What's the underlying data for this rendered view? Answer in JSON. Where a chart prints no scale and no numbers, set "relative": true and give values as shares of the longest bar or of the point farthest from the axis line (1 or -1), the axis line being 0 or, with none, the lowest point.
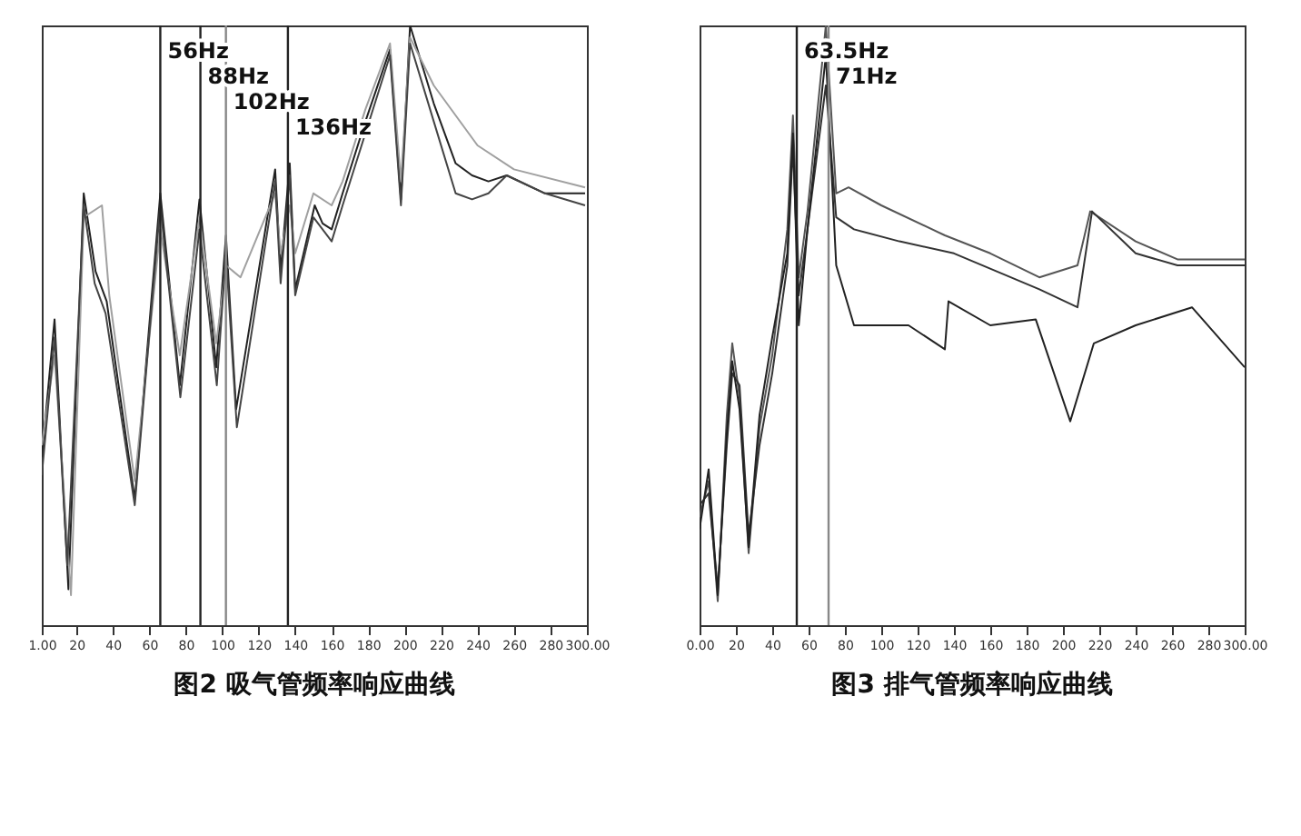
{
  "chart_data": [
    {
      "type": "line",
      "title": "图2  吸气管频率响应曲线",
      "relative": true,
      "xlim": [
        1,
        300
      ],
      "xticks": [
        {
          "value": 1,
          "label": "1.00"
        },
        20,
        40,
        60,
        80,
        100,
        120,
        140,
        160,
        180,
        200,
        220,
        240,
        260,
        280,
        {
          "value": 300,
          "label": "300.00"
        }
      ],
      "series": [
        {
          "color": "#222222",
          "x": [
            1,
            8,
            15.6,
            24,
            30.5,
            36.6,
            52,
            66,
            76.7,
            87.5,
            96.7,
            102,
            107.6,
            129,
            132,
            137,
            140,
            150.7,
            155,
            160,
            166,
            178.5,
            192,
            198,
            203,
            216,
            228,
            237,
            246,
            256,
            277,
            299
          ],
          "values": [
            0.28,
            0.51,
            0.06,
            0.72,
            0.59,
            0.54,
            0.21,
            0.72,
            0.4,
            0.71,
            0.43,
            0.65,
            0.36,
            0.76,
            0.59,
            0.77,
            0.56,
            0.7,
            0.67,
            0.66,
            0.72,
            0.84,
            0.96,
            0.71,
            1,
            0.87,
            0.77,
            0.75,
            0.74,
            0.75,
            0.72,
            0.72
          ]
        },
        {
          "color": "#a0a0a0",
          "x": [
            1,
            8,
            17,
            24,
            34,
            38,
            52,
            66,
            76.7,
            87.5,
            96.7,
            102,
            110,
            129,
            132,
            137,
            140,
            150,
            160,
            166,
            178.5,
            192,
            198,
            203,
            216,
            240,
            260,
            299
          ],
          "values": [
            0.3,
            0.45,
            0.05,
            0.68,
            0.7,
            0.55,
            0.24,
            0.66,
            0.45,
            0.68,
            0.47,
            0.6,
            0.58,
            0.72,
            0.62,
            0.7,
            0.62,
            0.72,
            0.7,
            0.74,
            0.86,
            0.97,
            0.74,
            0.98,
            0.9,
            0.8,
            0.76,
            0.73
          ]
        },
        {
          "color": "#444444",
          "x": [
            1,
            8,
            15,
            24,
            30,
            36,
            52,
            66,
            77,
            87.5,
            97,
            102,
            108,
            129,
            132,
            137,
            140,
            150,
            160,
            166,
            178.5,
            192,
            198,
            203,
            216,
            228,
            237,
            246,
            256,
            277,
            299
          ],
          "values": [
            0.25,
            0.48,
            0.1,
            0.7,
            0.57,
            0.52,
            0.2,
            0.7,
            0.38,
            0.66,
            0.4,
            0.62,
            0.33,
            0.74,
            0.57,
            0.75,
            0.55,
            0.68,
            0.64,
            0.7,
            0.82,
            0.95,
            0.7,
            0.97,
            0.84,
            0.72,
            0.71,
            0.72,
            0.75,
            0.72,
            0.7
          ]
        }
      ],
      "ref_lines": [
        {
          "axis": "x",
          "value": 66,
          "label": "56Hz",
          "color": "#222222"
        },
        {
          "axis": "x",
          "value": 88,
          "label": "88Hz",
          "color": "#222222"
        },
        {
          "axis": "x",
          "value": 102,
          "label": "102Hz",
          "color": "#888888"
        },
        {
          "axis": "x",
          "value": 136,
          "label": "136Hz",
          "color": "#222222"
        }
      ]
    },
    {
      "type": "line",
      "title": "图3  排气管频率响应曲线",
      "relative": true,
      "xlim": [
        0,
        300
      ],
      "xticks": [
        {
          "value": 0,
          "label": "0.00"
        },
        20,
        40,
        60,
        80,
        100,
        120,
        140,
        160,
        180,
        200,
        220,
        240,
        260,
        280,
        {
          "value": 300,
          "label": "300.00"
        }
      ],
      "series": [
        {
          "color": "#555555",
          "x": [
            0,
            5,
            10,
            15,
            18,
            22,
            27,
            33,
            40,
            48.3,
            51.4,
            54.6,
            59.4,
            69.5,
            75.2,
            82,
            100,
            135,
            160,
            187,
            208,
            215,
            240,
            263,
            300
          ],
          "values": [
            0.18,
            0.24,
            0.04,
            0.35,
            0.47,
            0.38,
            0.12,
            0.33,
            0.45,
            0.66,
            0.85,
            0.58,
            0.69,
            1,
            0.72,
            0.73,
            0.7,
            0.65,
            0.62,
            0.58,
            0.6,
            0.69,
            0.64,
            0.61,
            0.61
          ]
        },
        {
          "color": "#333333",
          "x": [
            0,
            5,
            10,
            15,
            18,
            22,
            27,
            33,
            40,
            48.3,
            51.4,
            54.6,
            59.4,
            69.5,
            75.2,
            85,
            110,
            140,
            187,
            208,
            216,
            240,
            263,
            300
          ],
          "values": [
            0.2,
            0.22,
            0.06,
            0.3,
            0.42,
            0.4,
            0.15,
            0.3,
            0.42,
            0.6,
            0.8,
            0.55,
            0.66,
            0.9,
            0.68,
            0.66,
            0.64,
            0.62,
            0.56,
            0.53,
            0.69,
            0.62,
            0.6,
            0.6
          ]
        },
        {
          "color": "#222222",
          "x": [
            0,
            5,
            10,
            15,
            18,
            22,
            27,
            33,
            40,
            48.3,
            51.4,
            54.6,
            59.4,
            69.5,
            75.2,
            85,
            115,
            135,
            137,
            160,
            185,
            204,
            217,
            240,
            271,
            300
          ],
          "values": [
            0.16,
            0.26,
            0.05,
            0.32,
            0.44,
            0.36,
            0.13,
            0.35,
            0.48,
            0.62,
            0.82,
            0.5,
            0.66,
            0.95,
            0.6,
            0.5,
            0.5,
            0.46,
            0.54,
            0.5,
            0.51,
            0.34,
            0.47,
            0.5,
            0.53,
            0.43
          ]
        }
      ],
      "ref_lines": [
        {
          "axis": "x",
          "value": 53.5,
          "label": "63.5Hz",
          "color": "#222222"
        },
        {
          "axis": "x",
          "value": 71,
          "label": "71Hz",
          "color": "#888888"
        }
      ]
    }
  ]
}
